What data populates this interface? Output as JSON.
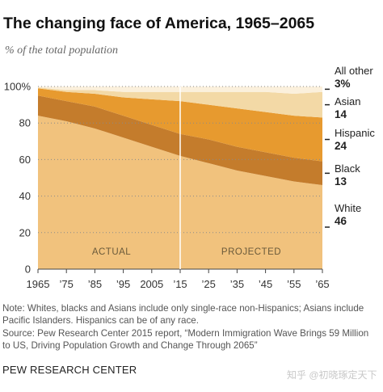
{
  "chart_data": {
    "type": "area",
    "title": "The changing face of America, 1965–2065",
    "subtitle": "% of the total population",
    "stacked": true,
    "x": [
      1965,
      1975,
      1985,
      1995,
      2005,
      2015,
      2025,
      2035,
      2045,
      2055,
      2065
    ],
    "x_tick_labels": [
      "1965",
      "’75",
      "’85",
      "’95",
      "2005",
      "’15",
      "’25",
      "’35",
      "’45",
      "’55",
      "’65"
    ],
    "ylim": [
      0,
      100
    ],
    "y_ticks": [
      0,
      20,
      40,
      60,
      80,
      100
    ],
    "y_tick_labels": [
      "0",
      "20",
      "40",
      "60",
      "80",
      "100%"
    ],
    "divider_x": 2015,
    "period_labels": {
      "actual": "ACTUAL",
      "projected": "PROJECTED"
    },
    "series": [
      {
        "name": "White",
        "color": "#f1c27d",
        "values": [
          84,
          81,
          77,
          72,
          67,
          62,
          58,
          54,
          51,
          48,
          46
        ]
      },
      {
        "name": "Black",
        "color": "#c47c2c",
        "values": [
          11,
          11,
          12,
          12,
          12,
          12,
          13,
          13,
          13,
          13,
          13
        ]
      },
      {
        "name": "Hispanic",
        "color": "#e79a2f",
        "values": [
          4,
          5,
          7,
          10,
          14,
          18,
          19,
          21,
          22,
          23,
          24
        ]
      },
      {
        "name": "Asian",
        "color": "#f3d9a6",
        "values": [
          0.5,
          1,
          2,
          3,
          4,
          5,
          7,
          9,
          11,
          12,
          14
        ]
      },
      {
        "name": "All other",
        "color": "#fbf0dc",
        "values": [
          0.5,
          2,
          2,
          3,
          3,
          3,
          3,
          3,
          3,
          4,
          3
        ]
      }
    ],
    "end_labels": [
      {
        "name": "All other",
        "value": "3%"
      },
      {
        "name": "Asian",
        "value": "14"
      },
      {
        "name": "Hispanic",
        "value": "24"
      },
      {
        "name": "Black",
        "value": "13"
      },
      {
        "name": "White",
        "value": "46"
      }
    ]
  },
  "note": "Note: Whites, blacks and Asians include only single-race non-Hispanics; Asians include Pacific Islanders. Hispanics can be of any race.",
  "source": "Source:  Pew Research Center 2015 report, “Modern Immigration Wave Brings 59 Million to US, Driving Population Growth and Change Through 2065”",
  "organization": "PEW RESEARCH CENTER",
  "watermark": "知乎 @初晓琢定天下"
}
